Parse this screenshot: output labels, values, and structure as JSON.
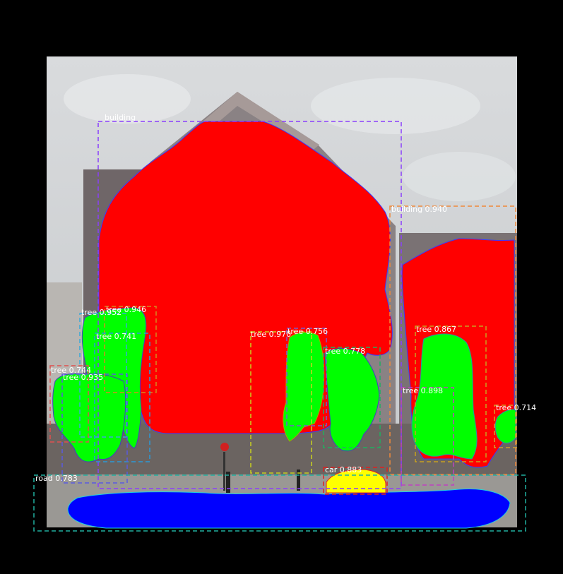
{
  "scene": {
    "kind": "instance-segmentation-output",
    "colors": {
      "background": "#000000",
      "building_mask": "#ff0000",
      "tree_mask": "#00ff00",
      "road_mask": "#0000ff",
      "car_mask": "#ffff00",
      "label_text": "#ffffff"
    }
  },
  "detections": [
    {
      "id": "building-1",
      "label": "building",
      "score": "",
      "color": "#8a3ffc"
    },
    {
      "id": "building-2",
      "label": "building 0.940",
      "score": "0.940",
      "color": "#f08a3a"
    },
    {
      "id": "tree-1",
      "label": "tree 0.946",
      "score": "0.946",
      "color": "#d48a20"
    },
    {
      "id": "tree-2",
      "label": "tree 0.952",
      "score": "0.952",
      "color": "#3aa8d8"
    },
    {
      "id": "tree-3",
      "label": "tree 0.741",
      "score": "0.741",
      "color": "#2a9ad8"
    },
    {
      "id": "tree-4",
      "label": "tree 0.744",
      "score": "0.744",
      "color": "#e05050"
    },
    {
      "id": "tree-5",
      "label": "tree 0.935",
      "score": "0.935",
      "color": "#5a5ae0"
    },
    {
      "id": "tree-6",
      "label": "tree 0.970",
      "score": "0.970",
      "color": "#c8d020"
    },
    {
      "id": "tree-7",
      "label": "tree 0.756",
      "score": "0.756",
      "color": "#7a5ad0"
    },
    {
      "id": "tree-8",
      "label": "tree 0.778",
      "score": "0.778",
      "color": "#20b060"
    },
    {
      "id": "tree-9",
      "label": "tree 0.867",
      "score": "0.867",
      "color": "#c8a020"
    },
    {
      "id": "tree-10",
      "label": "tree 0.898",
      "score": "0.898",
      "color": "#c040c0"
    },
    {
      "id": "tree-11",
      "label": "tree 0.714",
      "score": "0.714",
      "color": "#d0a030"
    },
    {
      "id": "car-1",
      "label": "car 0.883",
      "score": "0.883",
      "color": "#e02020"
    },
    {
      "id": "road-1",
      "label": "road 0.783",
      "score": "0.783",
      "color": "#20b0a0"
    }
  ]
}
